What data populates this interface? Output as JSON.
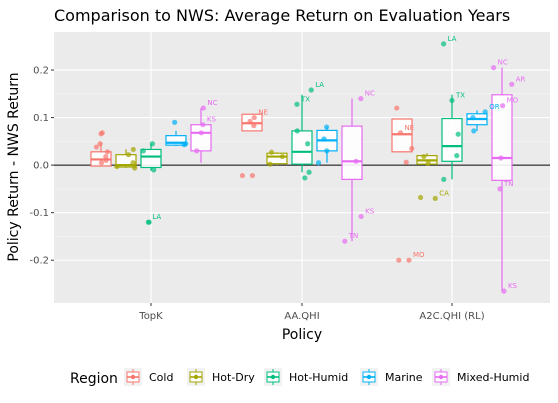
{
  "chart_data": {
    "type": "boxplot",
    "title": "Comparison to NWS: Average Return on Evaluation Years",
    "xlabel": "Policy",
    "ylabel": "Policy Return - NWS Return",
    "categories": [
      "TopK",
      "AA.QHI",
      "A2C.QHI (RL)"
    ],
    "ylim": [
      -0.29,
      0.28
    ],
    "yticks": [
      -0.2,
      -0.1,
      0.0,
      0.1,
      0.2
    ],
    "ytick_labels": [
      "-0.2",
      "-0.1",
      "0.0",
      "0.1",
      "0.2"
    ],
    "hline": 0,
    "grid": true,
    "legend": {
      "title": "Region",
      "position": "bottom"
    },
    "series": [
      {
        "name": "Cold",
        "color": "#F8766D",
        "boxes": [
          {
            "category": "TopK",
            "q1": -0.002,
            "median": 0.012,
            "q3": 0.028,
            "low": -0.002,
            "high": 0.047
          },
          {
            "category": "AA.QHI",
            "q1": 0.072,
            "median": 0.088,
            "q3": 0.107,
            "low": 0.072,
            "high": 0.107
          },
          {
            "category": "A2C.QHI (RL)",
            "q1": 0.028,
            "median": 0.065,
            "q3": 0.097,
            "low": 0.028,
            "high": 0.097
          }
        ],
        "points": [
          {
            "category": "TopK",
            "y": 0.018
          },
          {
            "category": "TopK",
            "y": 0.068
          },
          {
            "category": "TopK",
            "y": 0.045
          },
          {
            "category": "TopK",
            "y": 0.038
          },
          {
            "category": "TopK",
            "y": 0.028
          },
          {
            "category": "TopK",
            "y": 0.01
          },
          {
            "category": "TopK",
            "y": 0.066
          },
          {
            "category": "TopK",
            "y": 0.005
          },
          {
            "category": "AA.QHI",
            "y": -0.022,
            "label": ""
          },
          {
            "category": "AA.QHI",
            "y": -0.022
          },
          {
            "category": "AA.QHI",
            "y": 0.083
          },
          {
            "category": "AA.QHI",
            "y": 0.1,
            "label": "NE"
          },
          {
            "category": "AA.QHI",
            "y": 0.092
          },
          {
            "category": "A2C.QHI (RL)",
            "y": -0.2,
            "label": "MO"
          },
          {
            "category": "A2C.QHI (RL)",
            "y": -0.2
          },
          {
            "category": "A2C.QHI (RL)",
            "y": 0.068,
            "label": "NE"
          },
          {
            "category": "A2C.QHI (RL)",
            "y": 0.12
          },
          {
            "category": "A2C.QHI (RL)",
            "y": 0.035
          },
          {
            "category": "A2C.QHI (RL)",
            "y": 0.006
          }
        ]
      },
      {
        "name": "Hot-Dry",
        "color": "#A3A500",
        "boxes": [
          {
            "category": "TopK",
            "q1": -0.004,
            "median": 0.0,
            "q3": 0.022,
            "low": -0.006,
            "high": 0.033
          },
          {
            "category": "AA.QHI",
            "q1": 0.003,
            "median": 0.018,
            "q3": 0.025,
            "low": 0.0,
            "high": 0.027
          },
          {
            "category": "A2C.QHI (RL)",
            "q1": 0.002,
            "median": 0.01,
            "q3": 0.02,
            "low": -0.001,
            "high": 0.025
          }
        ],
        "points": [
          {
            "category": "TopK",
            "y": 0.033
          },
          {
            "category": "TopK",
            "y": 0.005
          },
          {
            "category": "TopK",
            "y": -0.003
          },
          {
            "category": "TopK",
            "y": 0.022
          },
          {
            "category": "TopK",
            "y": -0.006
          },
          {
            "category": "AA.QHI",
            "y": 0.027
          },
          {
            "category": "AA.QHI",
            "y": 0.018
          },
          {
            "category": "AA.QHI",
            "y": 0.002
          },
          {
            "category": "A2C.QHI (RL)",
            "y": -0.07,
            "label": "CA"
          },
          {
            "category": "A2C.QHI (RL)",
            "y": -0.068
          },
          {
            "category": "A2C.QHI (RL)",
            "y": 0.018
          },
          {
            "category": "A2C.QHI (RL)",
            "y": 0.004
          }
        ]
      },
      {
        "name": "Hot-Humid",
        "color": "#00BF7D",
        "boxes": [
          {
            "category": "TopK",
            "q1": -0.005,
            "median": 0.018,
            "q3": 0.033,
            "low": -0.012,
            "high": 0.045
          },
          {
            "category": "AA.QHI",
            "q1": 0.002,
            "median": 0.028,
            "q3": 0.072,
            "low": -0.015,
            "high": 0.148
          },
          {
            "category": "A2C.QHI (RL)",
            "q1": 0.008,
            "median": 0.04,
            "q3": 0.098,
            "low": -0.03,
            "high": 0.148
          }
        ],
        "points": [
          {
            "category": "TopK",
            "y": -0.12,
            "label": "LA"
          },
          {
            "category": "TopK",
            "y": -0.12
          },
          {
            "category": "TopK",
            "y": 0.045
          },
          {
            "category": "TopK",
            "y": 0.03
          },
          {
            "category": "TopK",
            "y": -0.01
          },
          {
            "category": "AA.QHI",
            "y": 0.158,
            "label": "LA"
          },
          {
            "category": "AA.QHI",
            "y": 0.128,
            "label": "TX"
          },
          {
            "category": "AA.QHI",
            "y": 0.072
          },
          {
            "category": "AA.QHI",
            "y": 0.045
          },
          {
            "category": "AA.QHI",
            "y": -0.015
          },
          {
            "category": "AA.QHI",
            "y": -0.027
          },
          {
            "category": "A2C.QHI (RL)",
            "y": 0.255,
            "label": "LA"
          },
          {
            "category": "A2C.QHI (RL)",
            "y": 0.136,
            "label": "TX"
          },
          {
            "category": "A2C.QHI (RL)",
            "y": 0.065
          },
          {
            "category": "A2C.QHI (RL)",
            "y": 0.02
          },
          {
            "category": "A2C.QHI (RL)",
            "y": -0.03
          }
        ]
      },
      {
        "name": "Marine",
        "color": "#00B0F6",
        "boxes": [
          {
            "category": "TopK",
            "q1": 0.042,
            "median": 0.047,
            "q3": 0.062,
            "low": 0.04,
            "high": 0.072
          },
          {
            "category": "AA.QHI",
            "q1": 0.03,
            "median": 0.052,
            "q3": 0.073,
            "low": 0.005,
            "high": 0.08
          },
          {
            "category": "A2C.QHI (RL)",
            "q1": 0.085,
            "median": 0.097,
            "q3": 0.108,
            "low": 0.072,
            "high": 0.115
          }
        ],
        "points": [
          {
            "category": "TopK",
            "y": 0.09
          },
          {
            "category": "TopK",
            "y": 0.045
          },
          {
            "category": "TopK",
            "y": 0.043
          },
          {
            "category": "AA.QHI",
            "y": 0.08
          },
          {
            "category": "AA.QHI",
            "y": 0.055
          },
          {
            "category": "AA.QHI",
            "y": 0.03
          },
          {
            "category": "AA.QHI",
            "y": 0.005
          },
          {
            "category": "A2C.QHI (RL)",
            "y": 0.112,
            "label": "OR"
          },
          {
            "category": "A2C.QHI (RL)",
            "y": 0.1
          },
          {
            "category": "A2C.QHI (RL)",
            "y": 0.072
          }
        ]
      },
      {
        "name": "Mixed-Humid",
        "color": "#E76BF3",
        "boxes": [
          {
            "category": "TopK",
            "q1": 0.03,
            "median": 0.068,
            "q3": 0.085,
            "low": 0.005,
            "high": 0.12
          },
          {
            "category": "AA.QHI",
            "q1": -0.03,
            "median": 0.008,
            "q3": 0.082,
            "low": -0.16,
            "high": 0.14
          },
          {
            "category": "A2C.QHI (RL)",
            "q1": -0.032,
            "median": 0.015,
            "q3": 0.148,
            "low": -0.265,
            "high": 0.205
          }
        ],
        "points": [
          {
            "category": "TopK",
            "y": 0.12,
            "label": "NC"
          },
          {
            "category": "TopK",
            "y": 0.085,
            "label": "KS"
          },
          {
            "category": "TopK",
            "y": 0.068
          },
          {
            "category": "TopK",
            "y": 0.03
          },
          {
            "category": "AA.QHI",
            "y": 0.14,
            "label": "NC"
          },
          {
            "category": "AA.QHI",
            "y": -0.108,
            "label": "KS"
          },
          {
            "category": "AA.QHI",
            "y": -0.16,
            "label": "TN"
          },
          {
            "category": "AA.QHI",
            "y": 0.008
          },
          {
            "category": "A2C.QHI (RL)",
            "y": 0.205,
            "label": "NC"
          },
          {
            "category": "A2C.QHI (RL)",
            "y": 0.17,
            "label": "AR"
          },
          {
            "category": "A2C.QHI (RL)",
            "y": 0.125,
            "label": "MO"
          },
          {
            "category": "A2C.QHI (RL)",
            "y": -0.05,
            "label": "TN"
          },
          {
            "category": "A2C.QHI (RL)",
            "y": -0.265,
            "label": "KS"
          },
          {
            "category": "A2C.QHI (RL)",
            "y": 0.015
          }
        ]
      }
    ]
  }
}
